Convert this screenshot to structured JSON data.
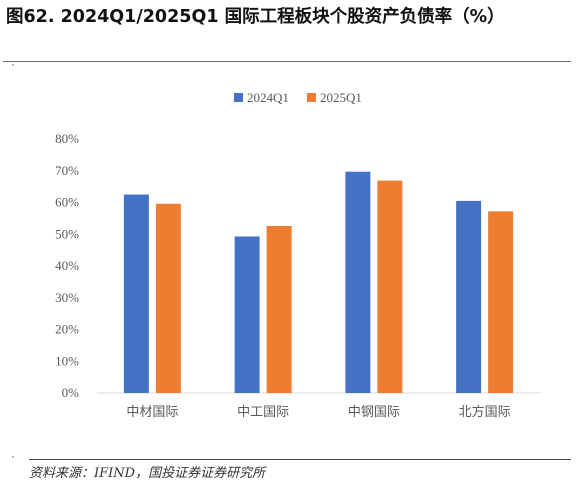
{
  "title": "图62. 2024Q1/2025Q1 国际工程板块个股资产负债率（%）",
  "source": "资料来源：IFIND，国投证券证券研究所",
  "chart_data": {
    "type": "bar",
    "categories": [
      "中材国际",
      "中工国际",
      "中钢国际",
      "北方国际"
    ],
    "series": [
      {
        "name": "2024Q1",
        "values": [
          62.5,
          49.3,
          69.7,
          60.5
        ],
        "color": "#4472C4"
      },
      {
        "name": "2025Q1",
        "values": [
          59.6,
          52.6,
          66.9,
          57.2
        ],
        "color": "#ED7D31"
      }
    ],
    "ylim": [
      0,
      80
    ],
    "yticks": [
      "0%",
      "10%",
      "20%",
      "30%",
      "40%",
      "50%",
      "60%",
      "70%",
      "80%"
    ],
    "grid": false,
    "legend": "top-center"
  }
}
